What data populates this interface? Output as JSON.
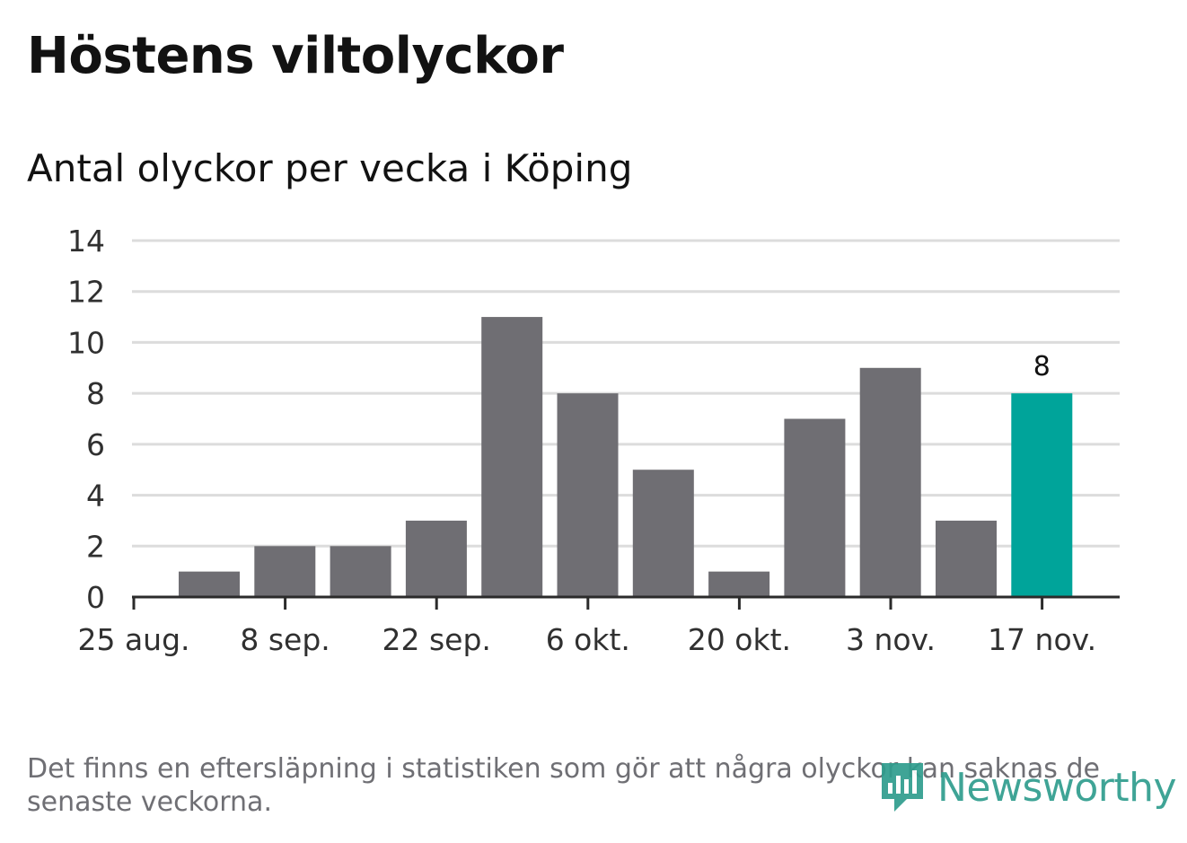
{
  "header": {
    "title": "Höstens viltolyckor",
    "subtitle": "Antal olyckor per vecka i Köping"
  },
  "chart_data": {
    "type": "bar",
    "title": "Höstens viltolyckor",
    "subtitle": "Antal olyckor per vecka i Köping",
    "xlabel": "",
    "ylabel": "",
    "ylim": [
      0,
      14
    ],
    "yticks": [
      0,
      2,
      4,
      6,
      8,
      10,
      12,
      14
    ],
    "grid": true,
    "x_tick_labels": [
      "25 aug.",
      "8 sep.",
      "22 sep.",
      "6 okt.",
      "20 okt.",
      "3 nov.",
      "17 nov."
    ],
    "values": [
      1,
      2,
      2,
      3,
      11,
      8,
      5,
      1,
      7,
      9,
      3,
      8
    ],
    "highlight_index": 11,
    "highlight_label": "8",
    "colors": {
      "bar": "#6f6e73",
      "highlight": "#00a49a",
      "grid": "#dcdcdc",
      "axis": "#2b2b2b"
    }
  },
  "footer": {
    "note": "Det finns en eftersläpning i statistiken som gör att några olyckor kan saknas de senaste veckorna.",
    "logo_text": "Newsworthy",
    "logo_icon": "newsworthy-logo-icon"
  }
}
